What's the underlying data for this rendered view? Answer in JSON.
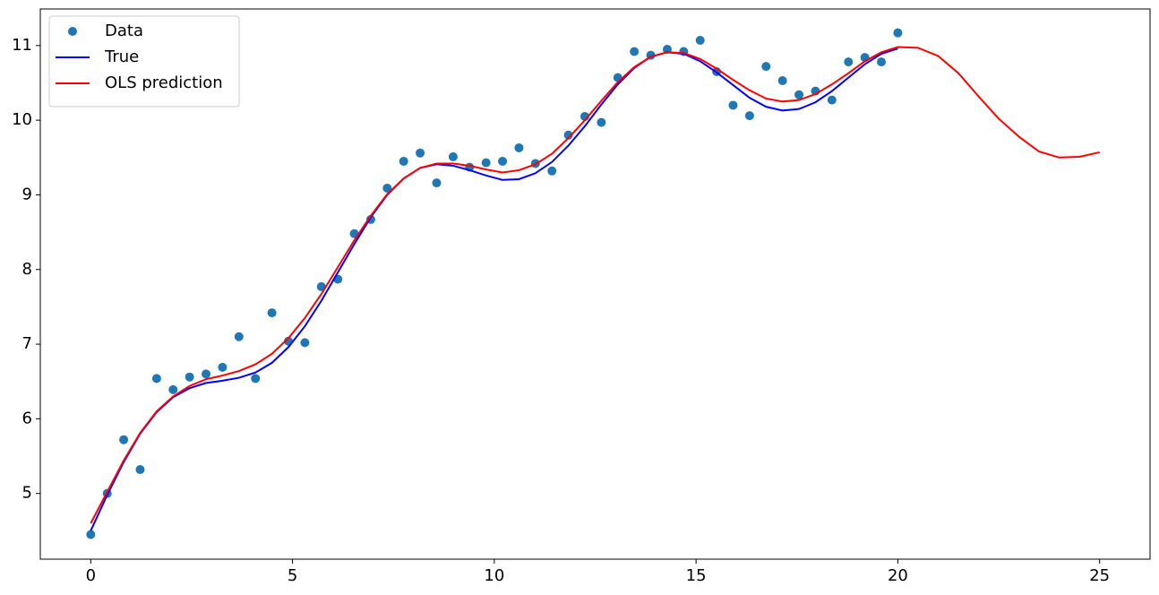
{
  "chart_data": {
    "type": "line",
    "x": [
      0,
      0.408,
      0.816,
      1.224,
      1.633,
      2.041,
      2.449,
      2.857,
      3.265,
      3.673,
      4.082,
      4.49,
      4.898,
      5.306,
      5.714,
      6.122,
      6.531,
      6.939,
      7.347,
      7.755,
      8.163,
      8.571,
      8.98,
      9.388,
      9.796,
      10.204,
      10.612,
      11.02,
      11.429,
      11.837,
      12.245,
      12.653,
      13.061,
      13.469,
      13.878,
      14.286,
      14.694,
      15.102,
      15.51,
      15.918,
      16.327,
      16.735,
      17.143,
      17.551,
      17.959,
      18.367,
      18.776,
      19.184,
      19.592,
      20
    ],
    "series": [
      {
        "name": "Data",
        "color": "#1f77b4",
        "marker": "o",
        "values": [
          4.45,
          5.0,
          5.72,
          5.32,
          6.54,
          6.39,
          6.56,
          6.6,
          6.69,
          7.1,
          6.54,
          7.42,
          7.04,
          7.02,
          7.77,
          7.87,
          8.48,
          8.67,
          9.09,
          9.45,
          9.56,
          9.16,
          9.51,
          9.37,
          9.43,
          9.45,
          9.63,
          9.42,
          9.32,
          9.8,
          10.05,
          9.97,
          10.57,
          10.92,
          10.87,
          10.95,
          10.92,
          11.07,
          10.65,
          10.2,
          10.06,
          10.72,
          10.53,
          10.34,
          10.39,
          10.27,
          10.78,
          10.84,
          10.78,
          11.17
        ]
      },
      {
        "name": "True",
        "color": "#0000ff",
        "values": [
          4.5,
          4.98,
          5.42,
          5.8,
          6.09,
          6.29,
          6.41,
          6.48,
          6.51,
          6.55,
          6.62,
          6.75,
          6.96,
          7.24,
          7.58,
          7.96,
          8.34,
          8.7,
          9.0,
          9.22,
          9.36,
          9.41,
          9.39,
          9.33,
          9.26,
          9.2,
          9.21,
          9.29,
          9.44,
          9.66,
          9.92,
          10.21,
          10.48,
          10.7,
          10.85,
          10.91,
          10.89,
          10.79,
          10.64,
          10.47,
          10.3,
          10.18,
          10.13,
          10.15,
          10.24,
          10.39,
          10.57,
          10.75,
          10.89,
          10.96
        ]
      },
      {
        "name": "OLS prediction",
        "color": "#ff0000",
        "x": [
          0,
          0.408,
          0.816,
          1.224,
          1.633,
          2.041,
          2.449,
          2.857,
          3.265,
          3.673,
          4.082,
          4.49,
          4.898,
          5.306,
          5.714,
          6.122,
          6.531,
          6.939,
          7.347,
          7.755,
          8.163,
          8.571,
          8.98,
          9.388,
          9.796,
          10.204,
          10.612,
          11.02,
          11.429,
          11.837,
          12.245,
          12.653,
          13.061,
          13.469,
          13.878,
          14.286,
          14.694,
          15.102,
          15.51,
          15.918,
          16.327,
          16.735,
          17.143,
          17.551,
          17.959,
          18.367,
          18.776,
          19.184,
          19.592,
          20,
          20.5,
          21,
          21.5,
          22,
          22.5,
          23,
          23.5,
          24,
          24.5,
          25
        ],
        "values": [
          4.6,
          5.02,
          5.44,
          5.81,
          6.1,
          6.3,
          6.44,
          6.53,
          6.58,
          6.64,
          6.73,
          6.87,
          7.08,
          7.35,
          7.67,
          8.03,
          8.39,
          8.72,
          9.01,
          9.22,
          9.36,
          9.42,
          9.42,
          9.39,
          9.34,
          9.3,
          9.33,
          9.41,
          9.55,
          9.76,
          10.0,
          10.26,
          10.51,
          10.71,
          10.85,
          10.91,
          10.9,
          10.82,
          10.69,
          10.54,
          10.4,
          10.29,
          10.25,
          10.27,
          10.35,
          10.48,
          10.63,
          10.79,
          10.91,
          10.98,
          10.97,
          10.86,
          10.63,
          10.32,
          10.02,
          9.78,
          9.58,
          9.5,
          9.51,
          9.57
        ]
      }
    ],
    "xlim": [
      -1.25,
      26.25
    ],
    "xticks": [
      0,
      5,
      10,
      15,
      20,
      25
    ],
    "ylim": [
      4.12,
      11.49
    ],
    "yticks": [
      5,
      6,
      7,
      8,
      9,
      10,
      11
    ],
    "grid": false,
    "legend": "upper left"
  }
}
